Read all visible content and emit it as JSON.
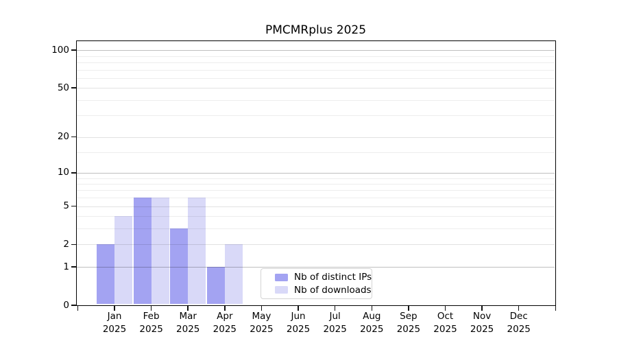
{
  "title": "PMCMRplus 2025",
  "chart_data": {
    "type": "bar",
    "title": "PMCMRplus 2025",
    "x_axis": {
      "months": [
        "Jan",
        "Feb",
        "Mar",
        "Apr",
        "May",
        "Jun",
        "Jul",
        "Aug",
        "Sep",
        "Oct",
        "Nov",
        "Dec"
      ],
      "year": "2025"
    },
    "series": [
      {
        "name": "Nb of distinct IPs",
        "color": "#a3a3f2",
        "values": [
          2,
          6,
          3,
          1,
          0,
          0,
          0,
          0,
          0,
          0,
          0,
          0
        ]
      },
      {
        "name": "Nb of downloads",
        "color": "#d9d9f8",
        "values": [
          4,
          6,
          6,
          2,
          0,
          0,
          0,
          0,
          0,
          0,
          0,
          0
        ]
      }
    ],
    "y_axis": {
      "scale": "log10(1+value)",
      "tick_values": [
        0,
        1,
        2,
        5,
        10,
        20,
        50,
        100
      ],
      "tick_labels": [
        "0",
        "1",
        "2",
        "5",
        "10",
        "20",
        "50",
        "100"
      ],
      "decade_gridline_values": [
        1,
        10,
        100
      ],
      "labeled_gridline_values": [
        2,
        5,
        20,
        50
      ],
      "minor_gridline_values": [
        3,
        4,
        6,
        7,
        8,
        9,
        15,
        30,
        40,
        60,
        70,
        80,
        90
      ]
    },
    "legend": {
      "items": [
        {
          "label": "Nb of distinct IPs",
          "color": "#a3a3f2"
        },
        {
          "label": "Nb of downloads",
          "color": "#d9d9f8"
        }
      ],
      "position": "lower center-right"
    },
    "grid": true
  }
}
